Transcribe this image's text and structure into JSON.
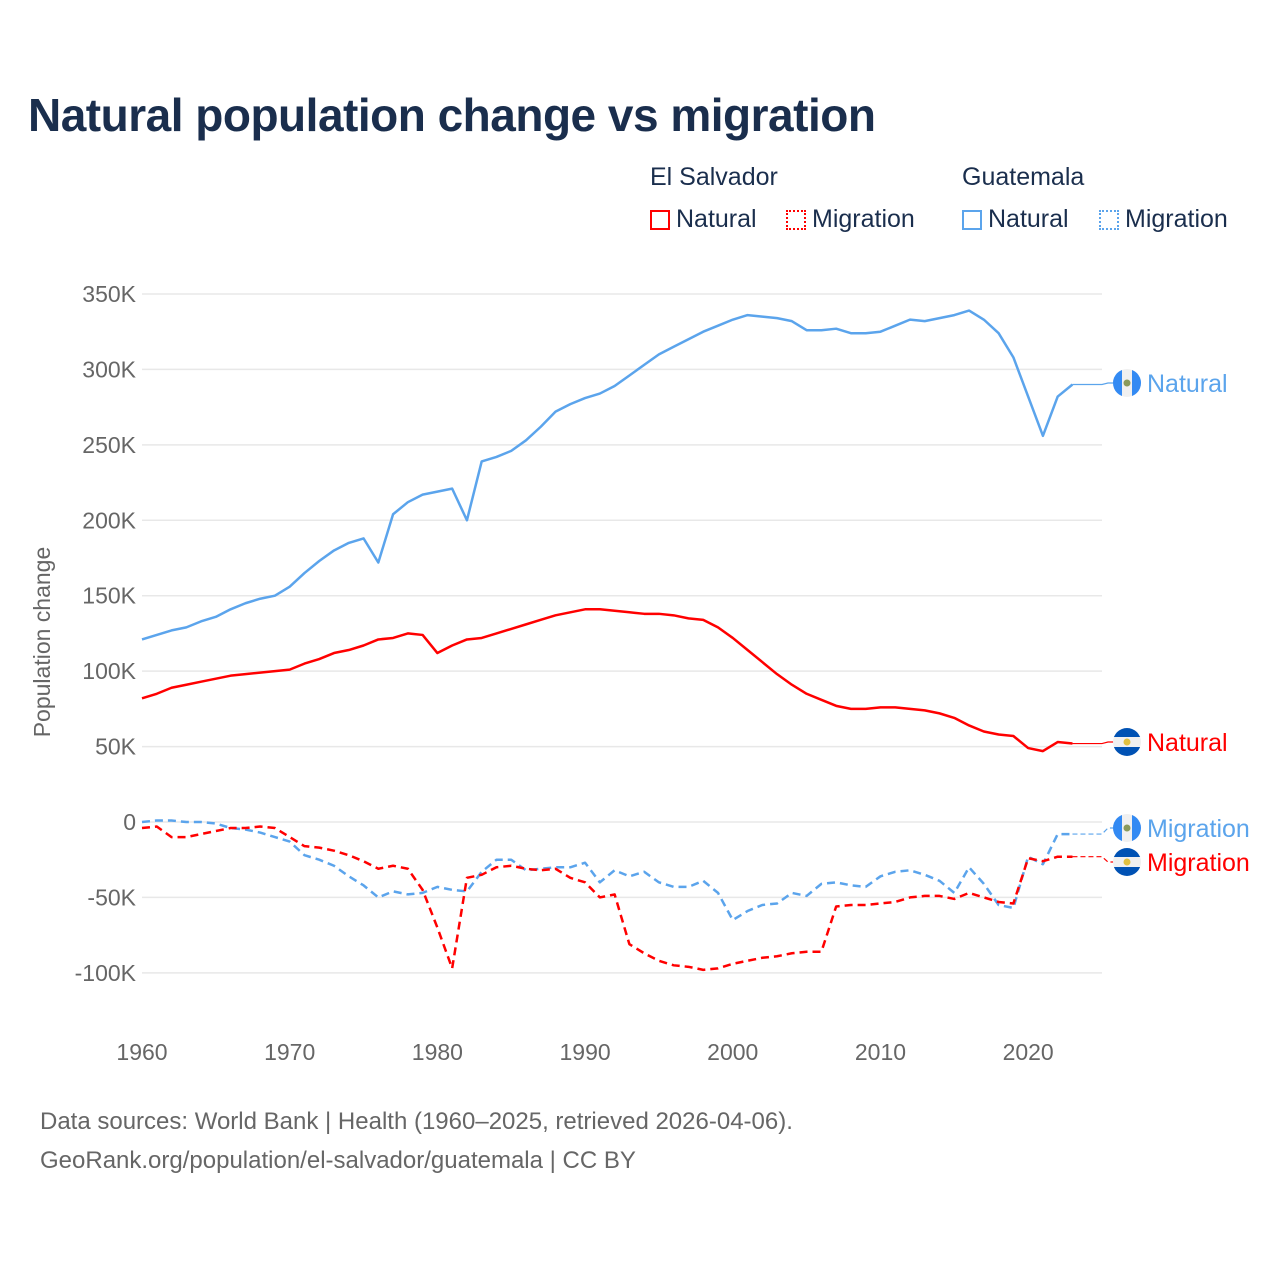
{
  "title": "Natural population change vs migration",
  "legend": {
    "groups": [
      {
        "name": "El Salvador",
        "items": [
          "Natural",
          "Migration"
        ],
        "color": "#ff0000"
      },
      {
        "name": "Guatemala",
        "items": [
          "Natural",
          "Migration"
        ],
        "color": "#5ba4ec"
      }
    ]
  },
  "footer": {
    "line1": "Data sources: World Bank | Health (1960–2025, retrieved 2026-04-06).",
    "line2": "GeoRank.org/population/el-salvador/guatemala | CC BY"
  },
  "chart_data": {
    "type": "line",
    "title": "Natural population change vs migration",
    "ylabel": "Population change",
    "xlabel": "",
    "xlim": [
      1960,
      2025
    ],
    "ylim": [
      -130000,
      350000
    ],
    "xticks": [
      1960,
      1970,
      1980,
      1990,
      2000,
      2010,
      2020
    ],
    "xtick_labels": [
      "1960",
      "1970",
      "1980",
      "1990",
      "2000",
      "2010",
      "2020"
    ],
    "yticks": [
      -100000,
      -50000,
      0,
      50000,
      100000,
      150000,
      200000,
      250000,
      300000,
      350000
    ],
    "ytick_labels": [
      "-100K",
      "-50K",
      "0",
      "50K",
      "100K",
      "150K",
      "200K",
      "250K",
      "300K",
      "350K"
    ],
    "grid": true,
    "x_start": 1960,
    "series": [
      {
        "name": "Guatemala Natural",
        "end_label": "Natural",
        "color": "#5ba4ec",
        "dash": false,
        "values_k": [
          121,
          124,
          127,
          129,
          133,
          136,
          141,
          145,
          148,
          150,
          156,
          165,
          173,
          180,
          185,
          188,
          172,
          204,
          212,
          217,
          219,
          221,
          200,
          239,
          242,
          246,
          253,
          262,
          272,
          277,
          281,
          284,
          289,
          296,
          303,
          310,
          315,
          320,
          325,
          329,
          333,
          336,
          335,
          334,
          332,
          326,
          326,
          327,
          324,
          324,
          325,
          329,
          333,
          332,
          334,
          336,
          339,
          333,
          324,
          308,
          282,
          256,
          282,
          290
        ]
      },
      {
        "name": "El Salvador Natural",
        "end_label": "Natural",
        "color": "#ff0000",
        "dash": false,
        "values_k": [
          82,
          85,
          89,
          91,
          93,
          95,
          97,
          98,
          99,
          100,
          101,
          105,
          108,
          112,
          114,
          117,
          121,
          122,
          125,
          124,
          112,
          117,
          121,
          122,
          125,
          128,
          131,
          134,
          137,
          139,
          141,
          141,
          140,
          139,
          138,
          138,
          137,
          135,
          134,
          129,
          122,
          114,
          106,
          98,
          91,
          85,
          81,
          77,
          75,
          75,
          76,
          76,
          75,
          74,
          72,
          69,
          64,
          60,
          58,
          57,
          49,
          47,
          53,
          52
        ]
      },
      {
        "name": "Guatemala Migration",
        "end_label": "Migration",
        "color": "#5ba4ec",
        "dash": true,
        "values_k": [
          0,
          1,
          1,
          0,
          0,
          -1,
          -4,
          -5,
          -7,
          -10,
          -13,
          -22,
          -25,
          -29,
          -36,
          -42,
          -50,
          -46,
          -48,
          -47,
          -43,
          -45,
          -46,
          -33,
          -25,
          -25,
          -32,
          -31,
          -30,
          -30,
          -27,
          -40,
          -32,
          -36,
          -33,
          -40,
          -43,
          -43,
          -39,
          -47,
          -65,
          -59,
          -55,
          -54,
          -47,
          -49,
          -41,
          -40,
          -42,
          -43,
          -36,
          -33,
          -32,
          -35,
          -39,
          -47,
          -30,
          -41,
          -55,
          -57,
          -23,
          -28,
          -8,
          -8
        ]
      },
      {
        "name": "El Salvador Migration",
        "end_label": "Migration",
        "color": "#ff0000",
        "dash": true,
        "values_k": [
          -4,
          -3,
          -10,
          -10,
          -8,
          -6,
          -4,
          -4,
          -3,
          -4,
          -10,
          -16,
          -17,
          -19,
          -22,
          -26,
          -31,
          -29,
          -31,
          -45,
          -70,
          -97,
          -37,
          -35,
          -30,
          -29,
          -31,
          -32,
          -31,
          -37,
          -40,
          -50,
          -48,
          -81,
          -87,
          -92,
          -95,
          -96,
          -98,
          -97,
          -94,
          -92,
          -90,
          -89,
          -87,
          -86,
          -86,
          -56,
          -55,
          -55,
          -54,
          -53,
          -50,
          -49,
          -49,
          -51,
          -47,
          -50,
          -53,
          -54,
          -24,
          -26,
          -23,
          -23
        ]
      }
    ]
  }
}
